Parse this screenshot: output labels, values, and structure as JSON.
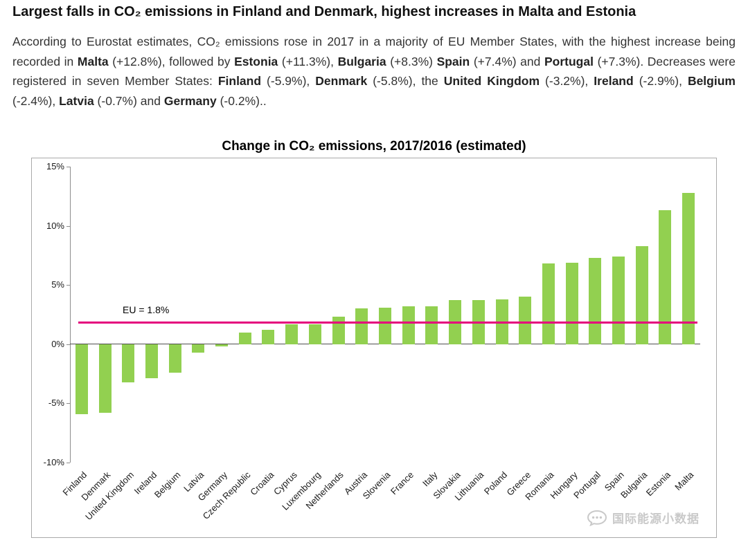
{
  "headline": "Largest falls in CO₂ emissions in Finland and Denmark, highest increases in Malta and Estonia",
  "intro": {
    "segments": [
      {
        "text": "According to Eurostat estimates, CO₂ emissions rose in 2017 in a majority of EU Member States, with the highest increase being recorded in ",
        "bold": false
      },
      {
        "text": "Malta",
        "bold": true
      },
      {
        "text": " (+12.8%), followed by ",
        "bold": false
      },
      {
        "text": "Estonia",
        "bold": true
      },
      {
        "text": " (+11.3%), ",
        "bold": false
      },
      {
        "text": "Bulgaria",
        "bold": true
      },
      {
        "text": " (+8.3%) ",
        "bold": false
      },
      {
        "text": "Spain",
        "bold": true
      },
      {
        "text": " (+7.4%) and ",
        "bold": false
      },
      {
        "text": "Portugal",
        "bold": true
      },
      {
        "text": " (+7.3%). Decreases were registered in seven Member States: ",
        "bold": false
      },
      {
        "text": "Finland",
        "bold": true
      },
      {
        "text": " (-5.9%), ",
        "bold": false
      },
      {
        "text": "Denmark",
        "bold": true
      },
      {
        "text": " (-5.8%), the ",
        "bold": false
      },
      {
        "text": "United Kingdom",
        "bold": true
      },
      {
        "text": " (-3.2%), ",
        "bold": false
      },
      {
        "text": "Ireland",
        "bold": true
      },
      {
        "text": " (-2.9%), ",
        "bold": false
      },
      {
        "text": "Belgium",
        "bold": true
      },
      {
        "text": " (-2.4%), ",
        "bold": false
      },
      {
        "text": "Latvia",
        "bold": true
      },
      {
        "text": " (-0.7%) and ",
        "bold": false
      },
      {
        "text": "Germany",
        "bold": true
      },
      {
        "text": " (-0.2%)..",
        "bold": false
      }
    ]
  },
  "chart_data": {
    "type": "bar",
    "title": "Change in CO₂ emissions, 2017/2016 (estimated)",
    "categories": [
      "Finland",
      "Denmark",
      "United Kingdom",
      "Ireland",
      "Belgium",
      "Latvia",
      "Germany",
      "Czech Republic",
      "Croatia",
      "Cyprus",
      "Luxembourg",
      "Netherlands",
      "Austria",
      "Slovenia",
      "France",
      "Italy",
      "Slovakia",
      "Lithuania",
      "Poland",
      "Greece",
      "Romania",
      "Hungary",
      "Portugal",
      "Spain",
      "Bulgaria",
      "Estonia",
      "Malta"
    ],
    "values": [
      -5.9,
      -5.8,
      -3.2,
      -2.9,
      -2.4,
      -0.7,
      -0.2,
      1.0,
      1.2,
      1.7,
      1.7,
      2.3,
      3.0,
      3.1,
      3.2,
      3.2,
      3.7,
      3.7,
      3.8,
      4.0,
      6.8,
      6.9,
      7.3,
      7.4,
      8.3,
      11.3,
      12.8
    ],
    "bar_color": "#92d050",
    "ylim": [
      -10,
      15
    ],
    "yticks": [
      {
        "value": 15,
        "label": "15%"
      },
      {
        "value": 10,
        "label": "10%"
      },
      {
        "value": 5,
        "label": "5%"
      },
      {
        "value": 0,
        "label": "0%"
      },
      {
        "value": -5,
        "label": "-5%"
      },
      {
        "value": -10,
        "label": "-10%"
      }
    ],
    "reference_line": {
      "value": 1.8,
      "label": "EU = 1.8%",
      "color": "#e5007d"
    },
    "grid": false,
    "legend": "none"
  },
  "watermark": {
    "text": "国际能源小数据",
    "icon": "speech-bubble-icon"
  }
}
